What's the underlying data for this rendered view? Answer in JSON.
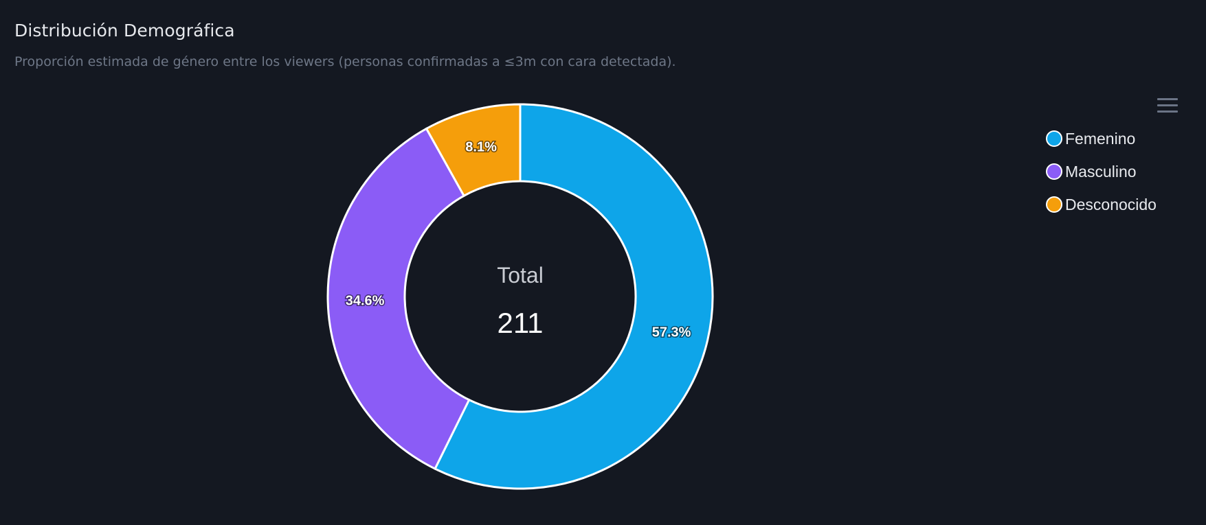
{
  "header": {
    "title": "Distribución Demográfica",
    "subtitle": "Proporción estimada de género entre los viewers (personas confirmadas a ≤3m con cara detectada)."
  },
  "toolbar": {
    "menu_icon": "hamburger-menu-icon"
  },
  "chart_data": {
    "type": "pie",
    "variant": "donut",
    "title": "Distribución Demográfica",
    "subtitle": "Proporción estimada de género entre los viewers (personas confirmadas a ≤3m con cara detectada).",
    "categories": [
      "Femenino",
      "Masculino",
      "Desconocido"
    ],
    "values": [
      57.3,
      34.6,
      8.1
    ],
    "value_labels": [
      "57.3%",
      "34.6%",
      "8.1%"
    ],
    "colors": [
      "#0ea5e9",
      "#8b5cf6",
      "#f59e0b"
    ],
    "center_label": "Total",
    "center_value": "211",
    "legend_position": "top-right",
    "slice_border_color": "#ffffff"
  },
  "colors": {
    "background": "#141821",
    "title": "#e6e8ec",
    "subtitle": "#6e7787"
  }
}
